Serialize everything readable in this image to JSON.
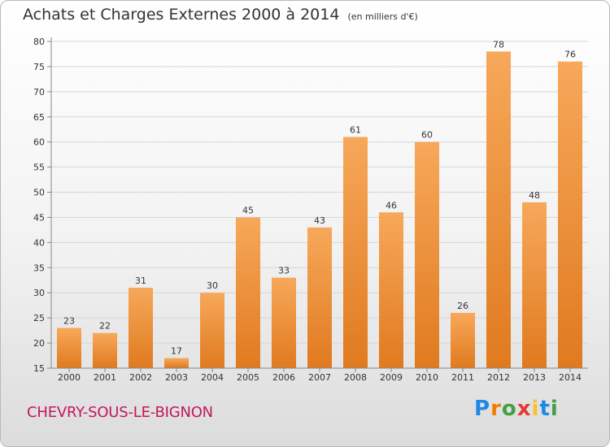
{
  "title": "Achats et Charges Externes 2000 à 2014",
  "unit_label": "(en milliers d'€)",
  "place_name": "CHEVRY-SOUS-LE-BIGNON",
  "logo": {
    "text": "Proxiti",
    "letters": [
      "P",
      "r",
      "o",
      "x",
      "i",
      "t",
      "i"
    ],
    "colors": [
      "#1e88e5",
      "#f57c00",
      "#43a047",
      "#e53935",
      "#fbc02d",
      "#1e88e5",
      "#43a047"
    ]
  },
  "colors": {
    "bar_top": "#f7a85a",
    "bar_bottom": "#e07a1f",
    "grid": "#d6d6d6",
    "axis": "#888888",
    "place": "#c2185b"
  },
  "chart_data": {
    "type": "bar",
    "title": "Achats et Charges Externes 2000 à 2014",
    "subtitle": "(en milliers d'€)",
    "xlabel": "",
    "ylabel": "",
    "categories": [
      "2000",
      "2001",
      "2002",
      "2003",
      "2004",
      "2005",
      "2006",
      "2007",
      "2008",
      "2009",
      "2010",
      "2011",
      "2012",
      "2013",
      "2014"
    ],
    "values": [
      23,
      22,
      31,
      17,
      30,
      45,
      33,
      43,
      61,
      46,
      60,
      26,
      78,
      48,
      76
    ],
    "ylim": [
      15,
      80
    ],
    "yticks": [
      15,
      20,
      25,
      30,
      35,
      40,
      45,
      50,
      55,
      60,
      65,
      70,
      75,
      80
    ],
    "grid": true,
    "legend": "none"
  }
}
